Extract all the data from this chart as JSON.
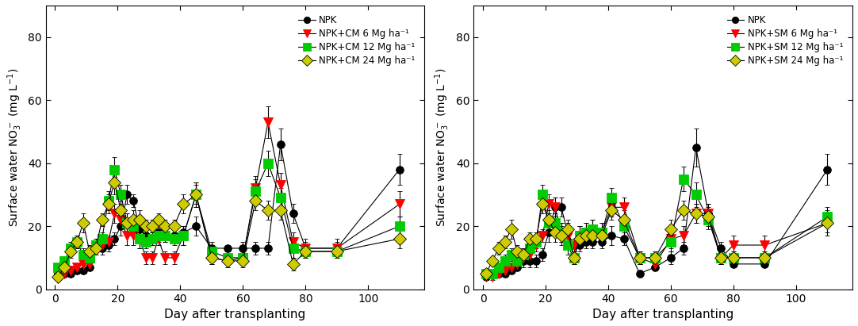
{
  "left": {
    "ylabel": "Surface water NO$_3^-$ (mg L$^{-1}$)",
    "xlabel": "Day after transplanting",
    "ylim": [
      0,
      90
    ],
    "yticks": [
      0,
      20,
      40,
      60,
      80
    ],
    "xticks": [
      0,
      20,
      40,
      60,
      80,
      100
    ],
    "xlim": [
      -3,
      118
    ],
    "legend_labels": [
      "NPK",
      "NPK+CM 6 Mg ha⁻¹",
      "NPK+CM 12 Mg ha⁻¹",
      "NPK+CM 24 Mg ha⁻¹"
    ],
    "series": {
      "NPK": {
        "x": [
          1,
          3,
          5,
          7,
          9,
          11,
          13,
          15,
          17,
          19,
          21,
          23,
          25,
          27,
          29,
          31,
          33,
          35,
          38,
          41,
          45,
          50,
          55,
          60,
          64,
          68,
          72,
          76,
          80,
          90,
          110
        ],
        "y": [
          5,
          5,
          5,
          6,
          6,
          7,
          13,
          13,
          14,
          16,
          20,
          30,
          28,
          19,
          17,
          16,
          18,
          17,
          17,
          18,
          20,
          13,
          13,
          13,
          13,
          13,
          46,
          24,
          13,
          13,
          38
        ],
        "yerr": [
          1,
          1,
          1,
          1,
          1,
          1,
          1,
          2,
          2,
          2,
          3,
          3,
          2,
          2,
          2,
          2,
          2,
          2,
          2,
          2,
          3,
          2,
          1,
          2,
          2,
          2,
          5,
          3,
          2,
          2,
          5
        ],
        "color": "#000000",
        "marker": "o",
        "ms": 7
      },
      "CM6": {
        "x": [
          1,
          3,
          5,
          7,
          9,
          11,
          13,
          15,
          17,
          19,
          21,
          23,
          25,
          27,
          29,
          31,
          33,
          35,
          38,
          41,
          45,
          50,
          55,
          60,
          64,
          68,
          72,
          76,
          80,
          90,
          110
        ],
        "y": [
          5,
          5,
          6,
          7,
          8,
          8,
          14,
          14,
          15,
          24,
          22,
          17,
          17,
          16,
          10,
          10,
          16,
          10,
          10,
          17,
          30,
          10,
          9,
          10,
          32,
          53,
          33,
          15,
          13,
          13,
          27
        ],
        "yerr": [
          1,
          1,
          1,
          1,
          1,
          1,
          2,
          2,
          2,
          3,
          3,
          3,
          3,
          3,
          2,
          2,
          2,
          2,
          2,
          3,
          4,
          2,
          2,
          2,
          4,
          5,
          4,
          3,
          3,
          3,
          4
        ],
        "color": "#ff0000",
        "marker": "v",
        "ms": 8
      },
      "CM12": {
        "x": [
          1,
          3,
          5,
          7,
          9,
          11,
          13,
          15,
          17,
          19,
          21,
          23,
          25,
          27,
          29,
          31,
          33,
          35,
          38,
          41,
          45,
          50,
          55,
          60,
          64,
          68,
          72,
          76,
          80,
          90,
          110
        ],
        "y": [
          7,
          9,
          13,
          15,
          11,
          10,
          14,
          16,
          28,
          38,
          30,
          21,
          20,
          16,
          15,
          16,
          17,
          17,
          16,
          17,
          30,
          12,
          10,
          10,
          31,
          40,
          29,
          13,
          12,
          12,
          20
        ],
        "yerr": [
          1,
          1,
          2,
          2,
          2,
          1,
          2,
          2,
          3,
          4,
          3,
          3,
          3,
          3,
          2,
          2,
          2,
          2,
          2,
          3,
          4,
          2,
          2,
          2,
          4,
          4,
          3,
          3,
          2,
          2,
          3
        ],
        "color": "#00cc00",
        "marker": "s",
        "ms": 8
      },
      "CM24": {
        "x": [
          1,
          3,
          5,
          7,
          9,
          11,
          13,
          15,
          17,
          19,
          21,
          23,
          25,
          27,
          29,
          31,
          33,
          35,
          38,
          41,
          45,
          50,
          55,
          60,
          64,
          68,
          72,
          76,
          80,
          90,
          110
        ],
        "y": [
          4,
          7,
          12,
          15,
          21,
          12,
          13,
          22,
          27,
          34,
          25,
          21,
          22,
          22,
          20,
          20,
          22,
          20,
          20,
          27,
          30,
          10,
          9,
          9,
          28,
          25,
          25,
          8,
          12,
          12,
          16
        ],
        "yerr": [
          1,
          1,
          2,
          2,
          3,
          2,
          2,
          2,
          3,
          4,
          3,
          3,
          3,
          3,
          2,
          2,
          2,
          2,
          2,
          3,
          3,
          2,
          2,
          2,
          3,
          3,
          3,
          2,
          2,
          2,
          3
        ],
        "color": "#cccc00",
        "marker": "D",
        "ms": 8
      }
    }
  },
  "right": {
    "ylabel": "Surface water NO$_3^-$ (mg L$^{-1}$)",
    "xlabel": "Day after transplanting",
    "ylim": [
      0,
      90
    ],
    "yticks": [
      0,
      20,
      40,
      60,
      80
    ],
    "xticks": [
      0,
      20,
      40,
      60,
      80,
      100
    ],
    "xlim": [
      -3,
      118
    ],
    "legend_labels": [
      "NPK",
      "NPK+SM 6 Mg ha⁻¹",
      "NPK+SM 12 Mg ha⁻¹",
      "NPK+SM 24 Mg ha⁻¹"
    ],
    "series": {
      "NPK": {
        "x": [
          1,
          3,
          5,
          7,
          9,
          11,
          13,
          15,
          17,
          19,
          21,
          23,
          25,
          27,
          29,
          31,
          33,
          35,
          38,
          41,
          45,
          50,
          55,
          60,
          64,
          68,
          72,
          76,
          80,
          90,
          110
        ],
        "y": [
          4,
          5,
          5,
          5,
          6,
          7,
          9,
          9,
          9,
          11,
          18,
          26,
          26,
          18,
          14,
          14,
          15,
          15,
          15,
          17,
          16,
          5,
          7,
          10,
          13,
          45,
          24,
          13,
          8,
          8,
          38
        ],
        "yerr": [
          1,
          1,
          1,
          1,
          1,
          1,
          2,
          2,
          2,
          2,
          3,
          3,
          3,
          3,
          2,
          2,
          2,
          2,
          2,
          3,
          2,
          1,
          1,
          2,
          2,
          6,
          3,
          2,
          1,
          1,
          5
        ],
        "color": "#000000",
        "marker": "o",
        "ms": 7
      },
      "SM6": {
        "x": [
          1,
          3,
          5,
          7,
          9,
          11,
          13,
          15,
          17,
          19,
          21,
          23,
          25,
          27,
          29,
          31,
          33,
          35,
          38,
          41,
          45,
          50,
          55,
          60,
          64,
          68,
          72,
          76,
          80,
          90,
          110
        ],
        "y": [
          4,
          4,
          5,
          6,
          7,
          8,
          10,
          11,
          14,
          17,
          27,
          26,
          18,
          17,
          14,
          17,
          18,
          19,
          18,
          26,
          26,
          10,
          8,
          16,
          17,
          24,
          24,
          10,
          14,
          14,
          21
        ],
        "yerr": [
          1,
          1,
          1,
          1,
          1,
          1,
          2,
          2,
          2,
          2,
          3,
          3,
          3,
          3,
          2,
          3,
          3,
          3,
          3,
          3,
          3,
          2,
          2,
          3,
          3,
          3,
          3,
          2,
          3,
          3,
          4
        ],
        "color": "#ff0000",
        "marker": "v",
        "ms": 8
      },
      "SM12": {
        "x": [
          1,
          3,
          5,
          7,
          9,
          11,
          13,
          15,
          17,
          19,
          21,
          23,
          25,
          27,
          29,
          31,
          33,
          35,
          38,
          41,
          45,
          50,
          55,
          60,
          64,
          68,
          72,
          76,
          80,
          90,
          110
        ],
        "y": [
          5,
          5,
          7,
          9,
          11,
          9,
          11,
          13,
          15,
          30,
          21,
          21,
          18,
          14,
          10,
          17,
          18,
          19,
          18,
          29,
          20,
          10,
          10,
          15,
          35,
          30,
          22,
          10,
          10,
          10,
          23
        ],
        "yerr": [
          1,
          1,
          1,
          2,
          2,
          2,
          2,
          2,
          2,
          3,
          3,
          3,
          3,
          3,
          2,
          3,
          3,
          3,
          3,
          3,
          3,
          2,
          2,
          3,
          4,
          4,
          3,
          2,
          2,
          2,
          3
        ],
        "color": "#00cc00",
        "marker": "s",
        "ms": 8
      },
      "SM24": {
        "x": [
          1,
          3,
          5,
          7,
          9,
          11,
          13,
          15,
          17,
          19,
          21,
          23,
          25,
          27,
          29,
          31,
          33,
          35,
          38,
          41,
          45,
          50,
          55,
          60,
          64,
          68,
          72,
          76,
          80,
          90,
          110
        ],
        "y": [
          5,
          9,
          13,
          15,
          19,
          12,
          11,
          16,
          16,
          27,
          22,
          18,
          17,
          19,
          10,
          16,
          17,
          17,
          17,
          25,
          22,
          10,
          10,
          19,
          25,
          24,
          23,
          10,
          10,
          10,
          21
        ],
        "yerr": [
          1,
          1,
          2,
          2,
          3,
          2,
          2,
          2,
          2,
          3,
          3,
          3,
          3,
          3,
          2,
          2,
          2,
          2,
          2,
          3,
          3,
          2,
          2,
          3,
          3,
          3,
          3,
          2,
          2,
          2,
          3
        ],
        "color": "#cccc00",
        "marker": "D",
        "ms": 8
      }
    }
  },
  "bg_color": "#ffffff",
  "line_color": "#000000",
  "line_width": 0.8,
  "capsize": 2,
  "marker_ec_black": "#000000"
}
